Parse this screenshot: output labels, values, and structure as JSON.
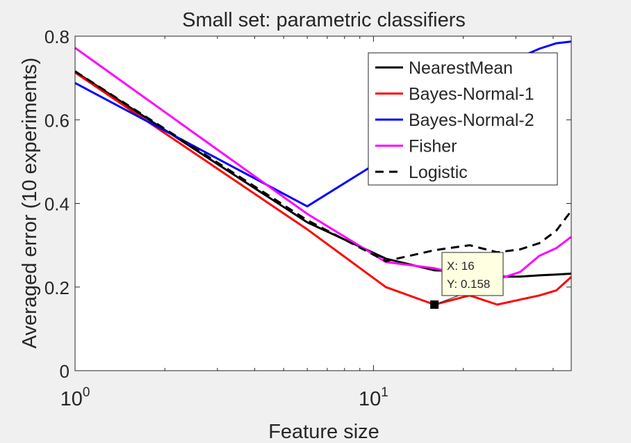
{
  "chart_data": {
    "type": "line",
    "title": "Small set: parametric classifiers",
    "xlabel": "Feature size",
    "ylabel": "Averaged error (10 experiments)",
    "xscale": "log",
    "xlim": [
      1,
      46
    ],
    "ylim": [
      0,
      0.8
    ],
    "x_ticks": [
      {
        "value": 1,
        "base": "10",
        "exp": "0"
      },
      {
        "value": 10,
        "base": "10",
        "exp": "1"
      }
    ],
    "y_ticks": [
      {
        "value": 0,
        "label": "0"
      },
      {
        "value": 0.2,
        "label": "0.2"
      },
      {
        "value": 0.4,
        "label": "0.4"
      },
      {
        "value": 0.6,
        "label": "0.6"
      },
      {
        "value": 0.8,
        "label": "0.8"
      }
    ],
    "legend_position": "top-right",
    "grid": false,
    "series": [
      {
        "name": "NearestMean",
        "color": "#000000",
        "dash": "solid",
        "points": [
          [
            1,
            0.715
          ],
          [
            6,
            0.355
          ],
          [
            11,
            0.268
          ],
          [
            16,
            0.24
          ],
          [
            21,
            0.238
          ],
          [
            26,
            0.225
          ],
          [
            31,
            0.225
          ],
          [
            36,
            0.228
          ],
          [
            41,
            0.23
          ],
          [
            46,
            0.232
          ]
        ]
      },
      {
        "name": "Bayes-Normal-1",
        "color": "#ff0000",
        "dash": "solid",
        "points": [
          [
            1,
            0.713
          ],
          [
            6,
            0.338
          ],
          [
            11,
            0.2
          ],
          [
            16,
            0.158
          ],
          [
            21,
            0.18
          ],
          [
            26,
            0.158
          ],
          [
            31,
            0.17
          ],
          [
            36,
            0.18
          ],
          [
            41,
            0.192
          ],
          [
            46,
            0.224
          ]
        ]
      },
      {
        "name": "Bayes-Normal-2",
        "color": "#0000ff",
        "dash": "solid",
        "points": [
          [
            1,
            0.688
          ],
          [
            6,
            0.393
          ],
          [
            11,
            0.51
          ],
          [
            16,
            0.62
          ],
          [
            21,
            0.68
          ],
          [
            26,
            0.72
          ],
          [
            31,
            0.75
          ],
          [
            36,
            0.77
          ],
          [
            41,
            0.783
          ],
          [
            46,
            0.787
          ]
        ]
      },
      {
        "name": "Fisher",
        "color": "#ff00ff",
        "dash": "solid",
        "points": [
          [
            1,
            0.772
          ],
          [
            6,
            0.375
          ],
          [
            11,
            0.26
          ],
          [
            16,
            0.245
          ],
          [
            21,
            0.225
          ],
          [
            26,
            0.218
          ],
          [
            31,
            0.236
          ],
          [
            36,
            0.275
          ],
          [
            41,
            0.293
          ],
          [
            46,
            0.32
          ]
        ]
      },
      {
        "name": "Logistic",
        "color": "#000000",
        "dash": "dashed",
        "points": [
          [
            1,
            0.716
          ],
          [
            6,
            0.36
          ],
          [
            11,
            0.262
          ],
          [
            16,
            0.288
          ],
          [
            21,
            0.3
          ],
          [
            26,
            0.283
          ],
          [
            31,
            0.29
          ],
          [
            36,
            0.305
          ],
          [
            41,
            0.335
          ],
          [
            46,
            0.382
          ]
        ]
      }
    ],
    "datatip": {
      "x": 16,
      "y": 0.158,
      "x_text": "X: 16",
      "y_text": "Y: 0.158"
    }
  }
}
